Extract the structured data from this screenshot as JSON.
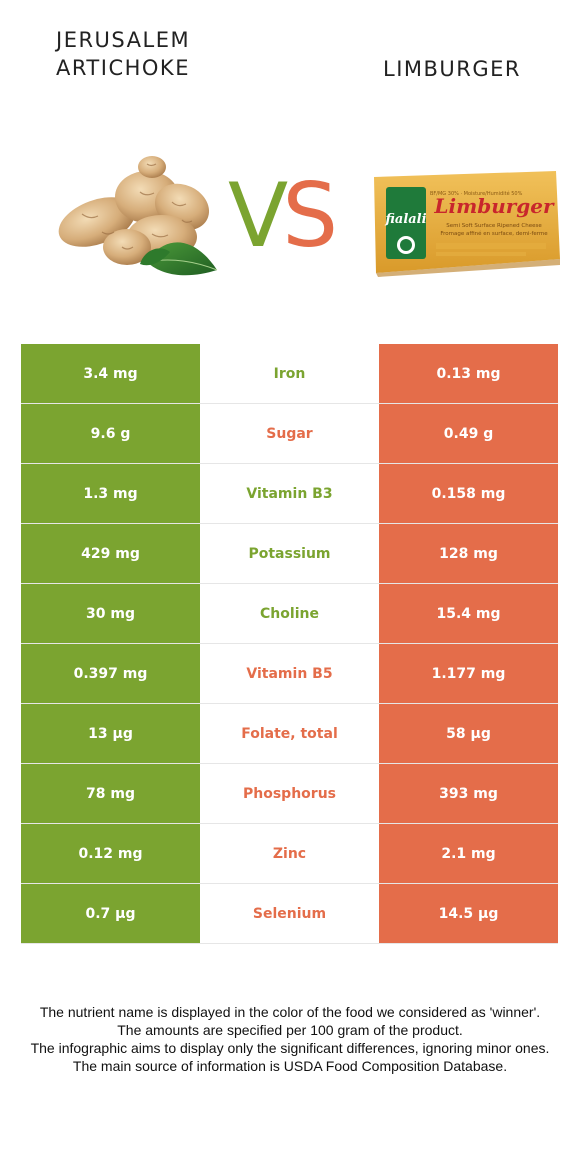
{
  "header": {
    "left_food": "JERUSALEM\nARTICHOKE",
    "left_food_line1": "JERUSALEM",
    "left_food_line2": "ARTICHOKE",
    "right_food": "LIMBURGER",
    "vs_v": "V",
    "vs_s": "S"
  },
  "colors": {
    "left_food": "#7ba430",
    "right_food": "#e46d4a"
  },
  "product_label": {
    "brand": "fialali",
    "name": "Limburger",
    "fine_print": [
      "Semi Soft Surface Ripened Cheese",
      "Fromage affiné en surface, demi-ferme"
    ],
    "top_line": "BF/MG 30% · Moisture/Humidité 50%"
  },
  "rows": [
    {
      "nutrient": "Iron",
      "left": "3.4 mg",
      "right": "0.13 mg",
      "winner": "left"
    },
    {
      "nutrient": "Sugar",
      "left": "9.6 g",
      "right": "0.49 g",
      "winner": "right"
    },
    {
      "nutrient": "Vitamin B3",
      "left": "1.3 mg",
      "right": "0.158 mg",
      "winner": "left"
    },
    {
      "nutrient": "Potassium",
      "left": "429 mg",
      "right": "128 mg",
      "winner": "left"
    },
    {
      "nutrient": "Choline",
      "left": "30 mg",
      "right": "15.4 mg",
      "winner": "left"
    },
    {
      "nutrient": "Vitamin B5",
      "left": "0.397 mg",
      "right": "1.177 mg",
      "winner": "right"
    },
    {
      "nutrient": "Folate, total",
      "left": "13 µg",
      "right": "58 µg",
      "winner": "right"
    },
    {
      "nutrient": "Phosphorus",
      "left": "78 mg",
      "right": "393 mg",
      "winner": "right"
    },
    {
      "nutrient": "Zinc",
      "left": "0.12 mg",
      "right": "2.1 mg",
      "winner": "right"
    },
    {
      "nutrient": "Selenium",
      "left": "0.7 µg",
      "right": "14.5 µg",
      "winner": "right"
    }
  ],
  "footer": {
    "line1": "The nutrient name is displayed in the color of the food we considered as 'winner'.",
    "line2": "The amounts are specified per 100 gram of the product.",
    "line3": "The infographic aims to display only the significant differences, ignoring minor ones.",
    "line4": "The main source of information is USDA Food Composition Database."
  }
}
